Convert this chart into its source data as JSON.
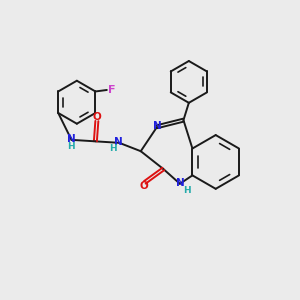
{
  "background_color": "#ebebeb",
  "bond_color": "#1a1a1a",
  "N_color": "#2020dd",
  "O_color": "#dd1111",
  "F_color": "#cc44cc",
  "H_color": "#22aaaa",
  "figsize": [
    3.0,
    3.0
  ],
  "dpi": 100,
  "xlim": [
    0,
    10
  ],
  "ylim": [
    0,
    10
  ]
}
